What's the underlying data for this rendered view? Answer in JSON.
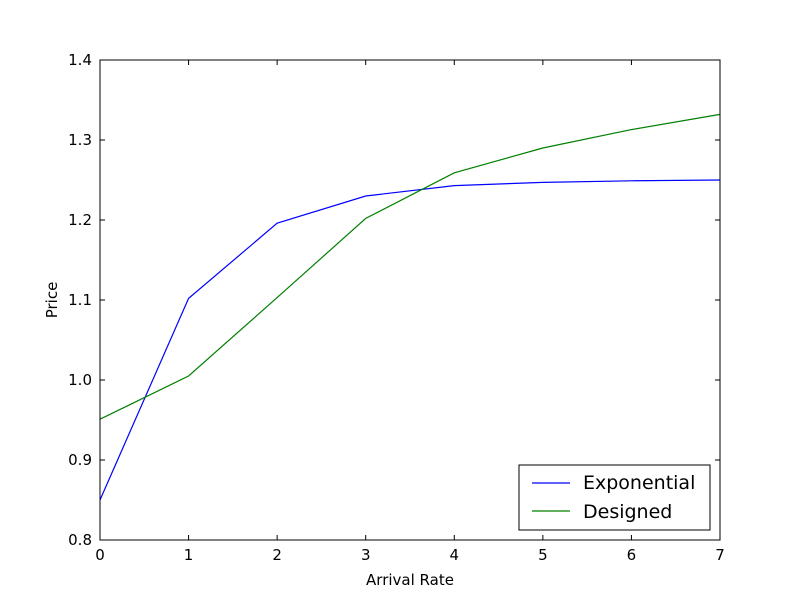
{
  "chart_data": {
    "type": "line",
    "title": "",
    "xlabel": "Arrival Rate",
    "ylabel": "Price",
    "xlim": [
      0,
      7
    ],
    "ylim": [
      0.8,
      1.4
    ],
    "x": [
      0,
      1,
      2,
      3,
      4,
      5,
      6,
      7
    ],
    "xticks": [
      0,
      1,
      2,
      3,
      4,
      5,
      6,
      7
    ],
    "xtick_labels": [
      "0",
      "1",
      "2",
      "3",
      "4",
      "5",
      "6",
      "7"
    ],
    "yticks": [
      0.8,
      0.9,
      1.0,
      1.1,
      1.2,
      1.3,
      1.4
    ],
    "ytick_labels": [
      "0.8",
      "0.9",
      "1.0",
      "1.1",
      "1.2",
      "1.3",
      "1.4"
    ],
    "grid": false,
    "legend_position": "bottom-right",
    "series": [
      {
        "name": "Exponential",
        "color": "#0000ff",
        "values": [
          0.85,
          1.102,
          1.196,
          1.23,
          1.243,
          1.247,
          1.249,
          1.25
        ]
      },
      {
        "name": "Designed",
        "color": "#008000",
        "values": [
          0.951,
          1.005,
          1.103,
          1.202,
          1.259,
          1.29,
          1.313,
          1.332
        ]
      }
    ]
  }
}
